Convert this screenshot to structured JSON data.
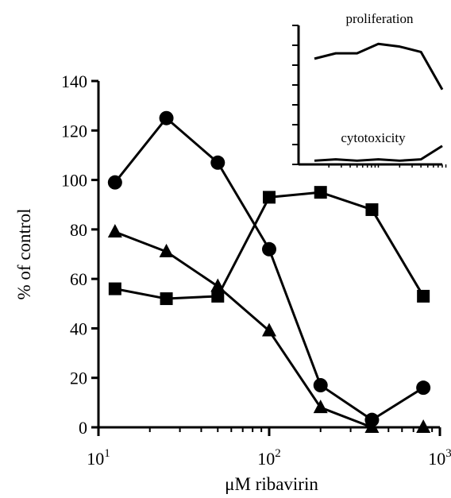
{
  "chart_data": [
    {
      "type": "line",
      "xscale": "log",
      "xlabel": "μM ribavirin",
      "ylabel": "% of control",
      "xlim": [
        10,
        1000
      ],
      "ylim": [
        0,
        140
      ],
      "xticks": [
        {
          "value": 10,
          "base": "10",
          "exp": "1"
        },
        {
          "value": 100,
          "base": "10",
          "exp": "2"
        },
        {
          "value": 1000,
          "base": "10",
          "exp": "3"
        }
      ],
      "yticks": [
        0,
        20,
        40,
        60,
        80,
        100,
        120,
        140
      ],
      "x": [
        12.5,
        25,
        50,
        100,
        200,
        400,
        800
      ],
      "series": [
        {
          "marker": "circle",
          "values": [
            99,
            125,
            107,
            72,
            17,
            3,
            16
          ]
        },
        {
          "marker": "square",
          "values": [
            56,
            52,
            53,
            93,
            95,
            88,
            53
          ]
        },
        {
          "marker": "triangle",
          "values": [
            79,
            71,
            57,
            39,
            8,
            0,
            0
          ]
        }
      ],
      "grid": false,
      "colors": {
        "line": "#000000",
        "background": "#ffffff"
      }
    },
    {
      "type": "line",
      "subplot": "inset",
      "xscale": "log",
      "series_labels": [
        "proliferation",
        "cytotoxicity"
      ],
      "x": [
        12.5,
        25,
        50,
        100,
        200,
        400,
        800
      ],
      "series": [
        {
          "label": "proliferation",
          "values": [
            0.77,
            0.81,
            0.81,
            0.88,
            0.86,
            0.82,
            0.54
          ]
        },
        {
          "label": "cytotoxicity",
          "values": [
            0.01,
            0.02,
            0.01,
            0.02,
            0.01,
            0.02,
            0.12
          ]
        }
      ]
    }
  ]
}
